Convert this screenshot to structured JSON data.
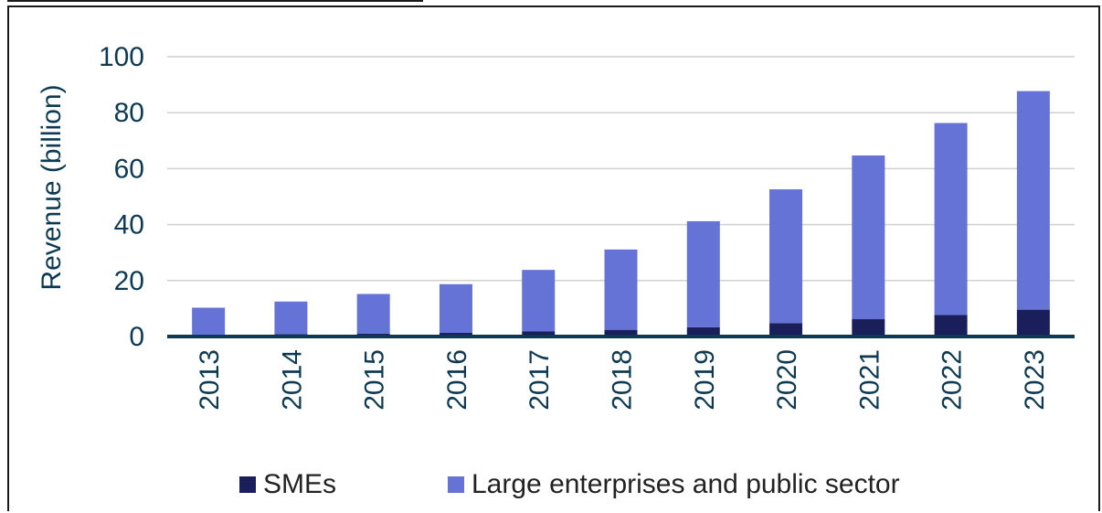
{
  "chart_data": {
    "type": "bar",
    "stacked": true,
    "categories": [
      "2013",
      "2014",
      "2015",
      "2016",
      "2017",
      "2018",
      "2019",
      "2020",
      "2021",
      "2022",
      "2023"
    ],
    "series": [
      {
        "name": "SMEs",
        "color": "#1a1f5c",
        "values": [
          0.6,
          0.8,
          1.0,
          1.3,
          1.8,
          2.4,
          3.3,
          4.8,
          6.2,
          7.7,
          9.6
        ]
      },
      {
        "name": "Large enterprises and public sector",
        "color": "#6673d6",
        "values": [
          9.7,
          11.7,
          14.2,
          17.4,
          22.0,
          28.7,
          37.9,
          47.8,
          58.5,
          68.6,
          78.1
        ]
      }
    ],
    "ylabel": "Revenue (billion)",
    "xlabel": "",
    "ylim": [
      0,
      100
    ],
    "yticks": [
      0,
      20,
      40,
      60,
      80,
      100
    ],
    "grid": true,
    "legend": "bottom",
    "axis_color": "#0d3a52",
    "grid_color": "#d0d0d0"
  }
}
